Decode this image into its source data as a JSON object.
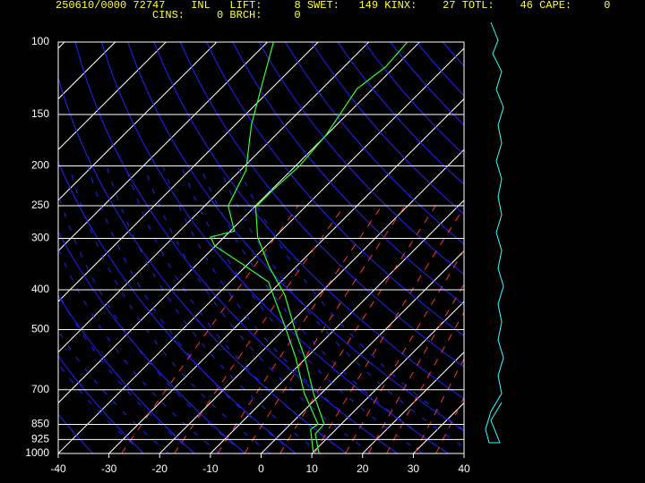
{
  "chart_data": {
    "type": "skewt",
    "header": {
      "line1": "250610/0000 72747    INL   LIFT:     8 SWET:   149 KINX:    27 TOTL:    46 CAPE:     0",
      "line2": "CINS:     0 BRCH:     0"
    },
    "xlim": [
      -40,
      40
    ],
    "xticks": [
      -40,
      -30,
      -20,
      -10,
      0,
      10,
      20,
      30,
      40
    ],
    "ylim": [
      1000,
      100
    ],
    "yticks": [
      100,
      150,
      200,
      250,
      300,
      400,
      500,
      700,
      850,
      925,
      1000
    ],
    "log_y": true,
    "grid": true,
    "series": [
      {
        "color": "#33ff33",
        "pressure": [
          1000,
          896,
          848,
          715,
          585,
          500,
          412,
          351,
          298,
          252,
          229,
          200,
          168,
          130,
          115,
          100
        ],
        "values": [
          11.4,
          6.8,
          6.6,
          -1.5,
          -10.3,
          -17.8,
          -26.6,
          -35.4,
          -43.4,
          -49.7,
          -49.7,
          -49.2,
          -50.1,
          -53.1,
          -51.8,
          -52.4
        ]
      },
      {
        "color": "#33ff33",
        "pressure": [
          1000,
          874,
          848,
          715,
          585,
          491,
          412,
          383,
          346,
          313,
          298,
          288,
          250,
          205,
          159,
          121,
          100
        ],
        "values": [
          10.3,
          5.0,
          5.4,
          -3.3,
          -12.1,
          -20.4,
          -28.9,
          -32.4,
          -41.2,
          -50.1,
          -52.7,
          -49.2,
          -55.4,
          -58.9,
          -66.8,
          -73.9,
          -78.8
        ]
      }
    ]
  }
}
